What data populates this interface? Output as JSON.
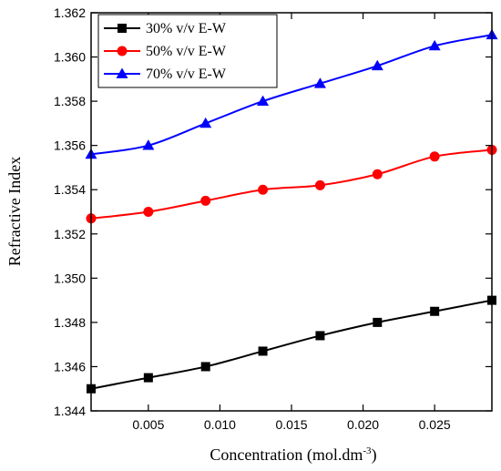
{
  "chart_data": {
    "type": "line",
    "title": "",
    "xlabel": "Concentration (mol.dm",
    "xlabel_sup": "-3",
    "xlabel_close": ")",
    "ylabel": "Refractive Index",
    "xlim": [
      0.001,
      0.029
    ],
    "ylim": [
      1.344,
      1.362
    ],
    "xticks": [
      "0.005",
      "0.010",
      "0.015",
      "0.020",
      "0.025"
    ],
    "yticks": [
      "1.344",
      "1.346",
      "1.348",
      "1.350",
      "1.352",
      "1.354",
      "1.356",
      "1.358",
      "1.360",
      "1.362"
    ],
    "grid": false,
    "legend_position": "top-left",
    "x": [
      0.001,
      0.005,
      0.009,
      0.013,
      0.017,
      0.021,
      0.025,
      0.029
    ],
    "series": [
      {
        "name": "30% v/v E-W",
        "color": "#000000",
        "marker": "square",
        "values": [
          1.345,
          1.3455,
          1.346,
          1.3467,
          1.3474,
          1.348,
          1.3485,
          1.349
        ]
      },
      {
        "name": "50% v/v E-W",
        "color": "#ff0000",
        "marker": "circle",
        "values": [
          1.3527,
          1.353,
          1.3535,
          1.354,
          1.3542,
          1.3547,
          1.3555,
          1.3558
        ]
      },
      {
        "name": "70% v/v E-W",
        "color": "#0000ff",
        "marker": "triangle",
        "values": [
          1.3556,
          1.356,
          1.357,
          1.358,
          1.3588,
          1.3596,
          1.3605,
          1.361
        ]
      }
    ]
  }
}
